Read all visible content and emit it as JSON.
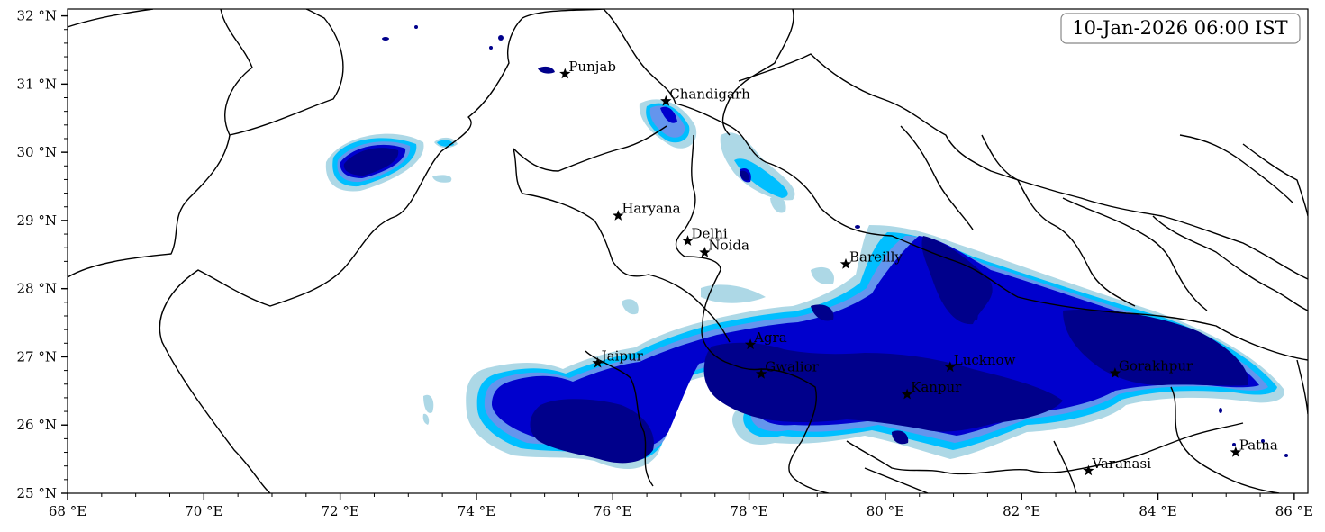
{
  "timestamp": "10-Jan-2026 06:00 IST",
  "axes": {
    "lon_range": [
      68,
      86.2
    ],
    "lat_range": [
      25,
      32.1
    ],
    "x_ticks": [
      {
        "value": 68,
        "label": "68 °E"
      },
      {
        "value": 70,
        "label": "70 °E"
      },
      {
        "value": 72,
        "label": "72 °E"
      },
      {
        "value": 74,
        "label": "74 °E"
      },
      {
        "value": 76,
        "label": "76 °E"
      },
      {
        "value": 78,
        "label": "78 °E"
      },
      {
        "value": 80,
        "label": "80 °E"
      },
      {
        "value": 82,
        "label": "82 °E"
      },
      {
        "value": 84,
        "label": "84 °E"
      },
      {
        "value": 86,
        "label": "86 °E"
      }
    ],
    "y_ticks": [
      {
        "value": 25,
        "label": "25 °N"
      },
      {
        "value": 26,
        "label": "26 °N"
      },
      {
        "value": 27,
        "label": "27 °N"
      },
      {
        "value": 28,
        "label": "28 °N"
      },
      {
        "value": 29,
        "label": "29 °N"
      },
      {
        "value": 30,
        "label": "30 °N"
      },
      {
        "value": 31,
        "label": "31 °N"
      },
      {
        "value": 32,
        "label": "32 °N"
      }
    ]
  },
  "colors": {
    "level1": "#add8e6",
    "level2": "#00bfff",
    "level3": "#6495ed",
    "level4": "#0000cd",
    "level5": "#00008b",
    "marker": "#000000"
  },
  "cities": [
    {
      "name": "Punjab",
      "lon": 75.3,
      "lat": 31.15
    },
    {
      "name": "Chandigarh",
      "lon": 76.78,
      "lat": 30.75
    },
    {
      "name": "Haryana",
      "lon": 76.08,
      "lat": 29.07
    },
    {
      "name": "Delhi",
      "lon": 77.1,
      "lat": 28.7
    },
    {
      "name": "Noida",
      "lon": 77.35,
      "lat": 28.53
    },
    {
      "name": "Bareilly",
      "lon": 79.42,
      "lat": 28.36
    },
    {
      "name": "Agra",
      "lon": 78.02,
      "lat": 27.18
    },
    {
      "name": "Jaipur",
      "lon": 75.78,
      "lat": 26.91
    },
    {
      "name": "Gwalior",
      "lon": 78.18,
      "lat": 26.75
    },
    {
      "name": "Lucknow",
      "lon": 80.95,
      "lat": 26.85
    },
    {
      "name": "Kanpur",
      "lon": 80.32,
      "lat": 26.45
    },
    {
      "name": "Gorakhpur",
      "lon": 83.37,
      "lat": 26.76
    },
    {
      "name": "Varanasi",
      "lon": 82.98,
      "lat": 25.33
    },
    {
      "name": "Patna",
      "lon": 85.14,
      "lat": 25.6
    }
  ]
}
